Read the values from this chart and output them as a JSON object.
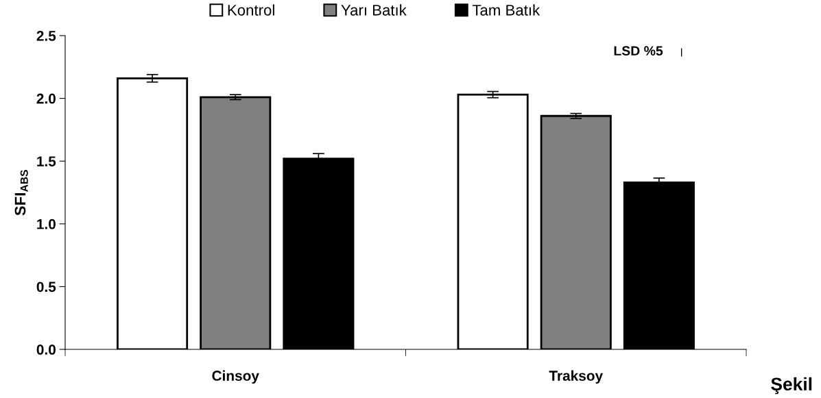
{
  "chart_data": {
    "type": "bar",
    "ylabel": "SFI$_{ABS}$",
    "categories": [
      "Cinsoy",
      "Traksoy"
    ],
    "series": [
      {
        "name": "Kontrol",
        "color": "#ffffff",
        "values": [
          2.16,
          2.03
        ],
        "errors": [
          0.03,
          0.025
        ]
      },
      {
        "name": "Yarı Batık",
        "color": "#808080",
        "values": [
          2.01,
          1.86
        ],
        "errors": [
          0.02,
          0.02
        ]
      },
      {
        "name": "Tam Batık",
        "color": "#000000",
        "values": [
          1.52,
          1.33
        ],
        "errors": [
          0.04,
          0.035
        ]
      }
    ],
    "ylim": [
      0,
      2.5
    ],
    "yticks": [
      {
        "value": 0,
        "label": "0.0"
      },
      0.5,
      {
        "value": 1,
        "label": "1.0"
      },
      1.5,
      {
        "value": 2,
        "label": "2.0"
      },
      2.5
    ],
    "grid": false,
    "legend": "top",
    "annotations": [
      "LSD %5",
      "Şekil"
    ]
  }
}
